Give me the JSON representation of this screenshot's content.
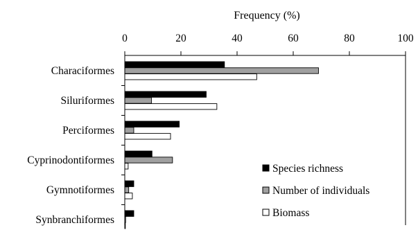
{
  "chart_data": {
    "type": "bar",
    "orientation": "horizontal",
    "xlabel": "Frequency (%)",
    "xlim": [
      0,
      100
    ],
    "xticks": [
      0,
      20,
      40,
      60,
      80,
      100
    ],
    "x_axis_position": "top",
    "grid": false,
    "legend_position": "bottom-right",
    "categories": [
      "Characiformes",
      "Siluriformes",
      "Perciformes",
      "Cyprinodontiformes",
      "Gymnotiformes",
      "Synbranchiformes"
    ],
    "series": [
      {
        "name": "Species richness",
        "color": "#000000",
        "values": [
          35.5,
          29.0,
          19.4,
          9.7,
          3.2,
          3.2
        ]
      },
      {
        "name": "Number of individuals",
        "color": "#a0a0a0",
        "values": [
          69.0,
          9.5,
          3.2,
          17.0,
          1.4,
          0.3
        ]
      },
      {
        "name": "Biomass",
        "color": "#ffffff",
        "values": [
          47.0,
          32.8,
          16.3,
          1.2,
          2.7,
          0.2
        ]
      }
    ]
  }
}
